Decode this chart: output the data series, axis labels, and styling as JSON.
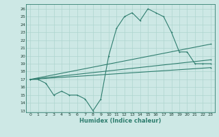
{
  "xlabel": "Humidex (Indice chaleur)",
  "bg_color": "#cde8e5",
  "line_color": "#2e7d6e",
  "grid_color": "#aed4cf",
  "xlim": [
    -0.5,
    23.5
  ],
  "ylim": [
    12.8,
    26.6
  ],
  "yticks": [
    13,
    14,
    15,
    16,
    17,
    18,
    19,
    20,
    21,
    22,
    23,
    24,
    25,
    26
  ],
  "xticks": [
    0,
    1,
    2,
    3,
    4,
    5,
    6,
    7,
    8,
    9,
    10,
    11,
    12,
    13,
    14,
    15,
    16,
    17,
    18,
    19,
    20,
    21,
    22,
    23
  ],
  "series1_x": [
    0,
    1,
    2,
    3,
    4,
    5,
    6,
    7,
    8,
    9,
    10,
    11,
    12,
    13,
    14,
    15,
    16,
    17,
    18,
    19,
    20,
    21,
    22,
    23
  ],
  "series1_y": [
    17.0,
    17.0,
    16.5,
    15.0,
    15.5,
    15.0,
    15.0,
    14.5,
    13.0,
    14.5,
    20.0,
    23.5,
    25.0,
    25.5,
    24.5,
    26.0,
    25.5,
    25.0,
    23.0,
    20.5,
    20.5,
    19.0,
    19.0,
    19.0
  ],
  "series2_x": [
    0,
    23
  ],
  "series2_y": [
    17.0,
    21.5
  ],
  "series3_x": [
    0,
    23
  ],
  "series3_y": [
    17.0,
    19.5
  ],
  "series4_x": [
    0,
    23
  ],
  "series4_y": [
    17.0,
    18.5
  ]
}
